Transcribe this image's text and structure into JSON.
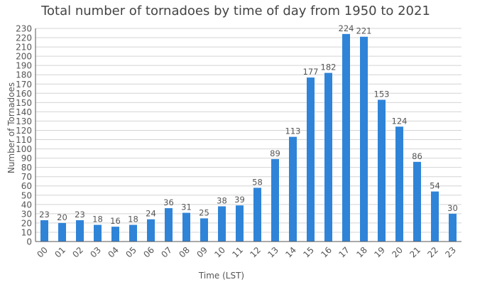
{
  "chart_data": {
    "type": "bar",
    "title": "Total number of tornadoes by time of day from 1950 to 2021",
    "xlabel": "Time (LST)",
    "ylabel": "Number of Tornadoes",
    "categories": [
      "00",
      "01",
      "02",
      "03",
      "04",
      "05",
      "06",
      "07",
      "08",
      "09",
      "10",
      "11",
      "12",
      "13",
      "14",
      "15",
      "16",
      "17",
      "18",
      "19",
      "20",
      "21",
      "22",
      "23"
    ],
    "values": [
      23,
      20,
      23,
      18,
      16,
      18,
      24,
      36,
      31,
      25,
      38,
      39,
      58,
      89,
      113,
      177,
      182,
      224,
      221,
      153,
      124,
      86,
      54,
      30
    ],
    "ylim": [
      0,
      230
    ],
    "ytick_step": 10,
    "grid": true,
    "bar_color": "#2f84d8"
  }
}
